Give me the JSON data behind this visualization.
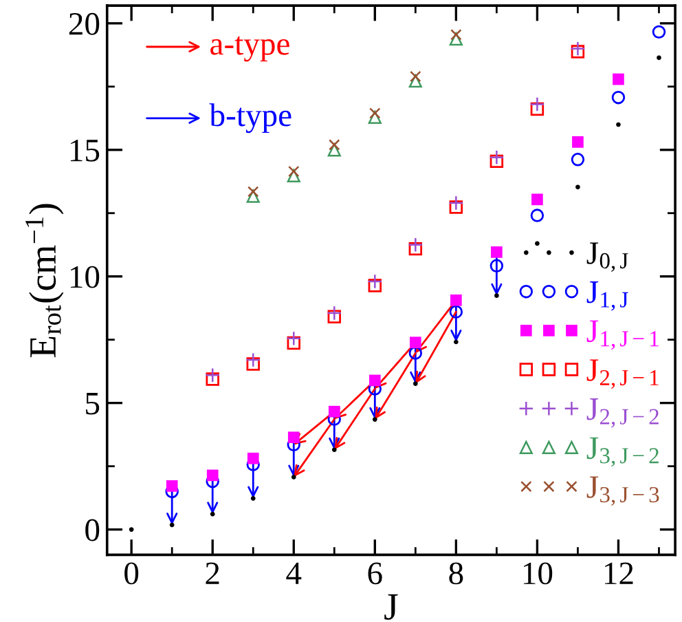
{
  "chart_data": {
    "type": "scatter",
    "xlabel": "J",
    "ylabel": "E$_{rot}$(cm$^{−1}$)",
    "xlim": [
      -0.6,
      13.4
    ],
    "ylim": [
      -1,
      20.7
    ],
    "xticks": [
      0,
      2,
      4,
      6,
      8,
      10,
      12
    ],
    "yticks": [
      0,
      5,
      10,
      15,
      20
    ],
    "grid": false,
    "legend": "right",
    "annotations": [
      "a-type",
      "b-type"
    ],
    "series": [
      {
        "name": "J$_{0,J}$",
        "color": "#000000",
        "marker": "circle",
        "x": [
          0,
          1,
          2,
          3,
          4,
          5,
          6,
          7,
          8,
          9,
          10,
          11,
          12,
          13
        ],
        "values": [
          0,
          0.18,
          0.61,
          1.23,
          2.07,
          3.15,
          4.35,
          5.76,
          7.41,
          9.24,
          11.3,
          13.53,
          16.0,
          18.64
        ]
      },
      {
        "name": "J$_{1,J}$",
        "color": "#0000ff",
        "marker": "circle",
        "x": [
          1,
          2,
          3,
          4,
          5,
          6,
          7,
          8,
          9,
          10,
          11,
          12,
          13
        ],
        "values": [
          1.5,
          1.9,
          2.57,
          3.35,
          4.36,
          5.56,
          6.97,
          8.6,
          10.42,
          12.41,
          14.62,
          17.07,
          19.66
        ]
      },
      {
        "name": "J$_{1,J−1}$",
        "color": "#ff00ff",
        "marker": "square",
        "x": [
          1,
          2,
          3,
          4,
          5,
          6,
          7,
          8,
          9,
          10,
          11,
          12
        ],
        "values": [
          1.72,
          2.14,
          2.81,
          3.64,
          4.66,
          5.89,
          7.39,
          9.06,
          10.96,
          13.04,
          15.31,
          17.79
        ]
      },
      {
        "name": "J$_{2,J−1}$",
        "color": "#ff0000",
        "marker": "square",
        "x": [
          2,
          3,
          4,
          5,
          6,
          7,
          8,
          9,
          10,
          11
        ],
        "values": [
          5.94,
          6.54,
          7.37,
          8.41,
          9.64,
          11.09,
          12.74,
          14.55,
          16.61,
          18.88
        ]
      },
      {
        "name": "J$_{2,J−2}$",
        "color": "#9a4fd0",
        "marker": "cross",
        "x": [
          2,
          3,
          4,
          5,
          6,
          7,
          8,
          9,
          10,
          11
        ],
        "values": [
          6.1,
          6.7,
          7.55,
          8.55,
          9.8,
          11.25,
          12.9,
          14.7,
          16.8,
          19.0
        ]
      },
      {
        "name": "J$_{3,J−2}$",
        "color": "#3f9a5f",
        "marker": "triangle",
        "x": [
          3,
          4,
          5,
          6,
          7,
          8
        ],
        "values": [
          13.17,
          13.98,
          15.0,
          16.29,
          17.72,
          19.38
        ]
      },
      {
        "name": "J$_{3,J−3}$",
        "color": "#9a5030",
        "marker": "cross",
        "x": [
          3,
          4,
          5,
          6,
          7,
          8
        ],
        "values": [
          13.35,
          14.15,
          15.2,
          16.45,
          17.9,
          19.55
        ]
      }
    ]
  }
}
